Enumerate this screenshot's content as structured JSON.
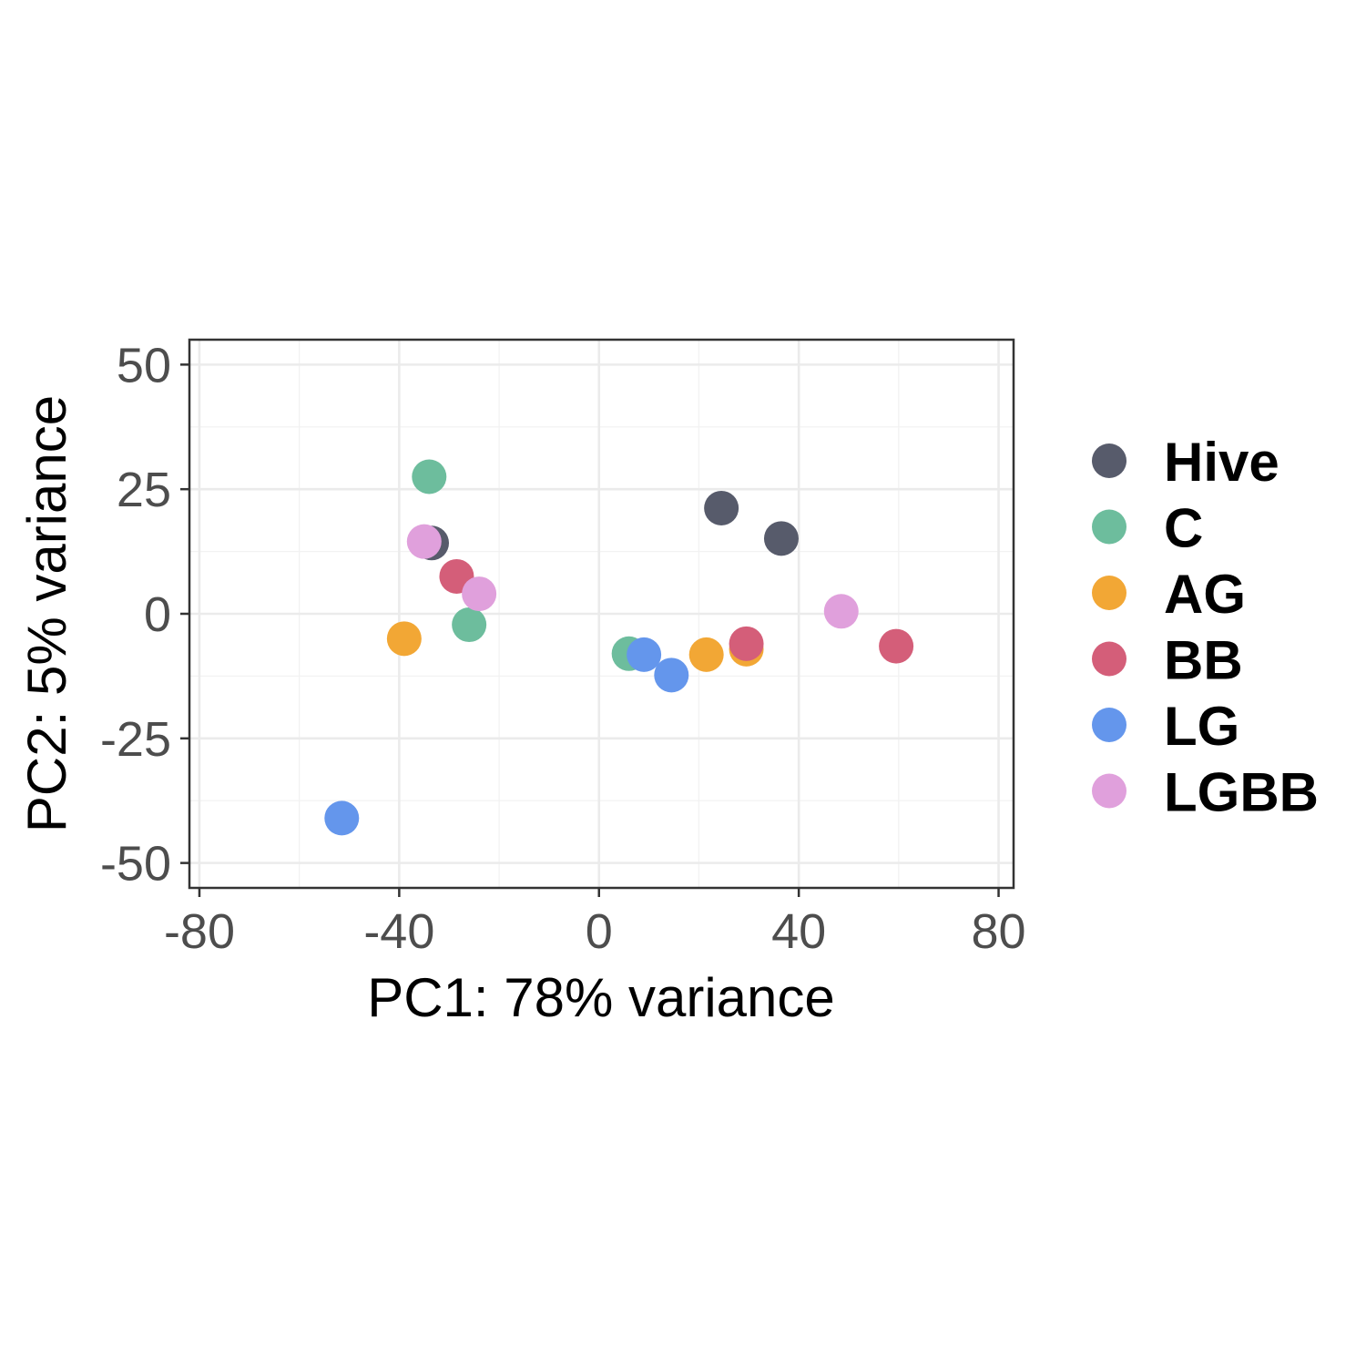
{
  "chart_data": {
    "type": "scatter",
    "xlabel": "PC1: 78% variance",
    "ylabel": "PC2: 5% variance",
    "xlim": [
      -82,
      83
    ],
    "ylim": [
      -55,
      55
    ],
    "x_ticks": [
      -80,
      -40,
      0,
      40,
      80
    ],
    "x_tick_labels": [
      "-80",
      "-40",
      "0",
      "40",
      "80"
    ],
    "y_ticks": [
      -50,
      -25,
      0,
      25,
      50
    ],
    "y_tick_labels": [
      "-50",
      "-25",
      "0",
      "25",
      "50"
    ],
    "grid": true,
    "legend_position": "right",
    "series": [
      {
        "name": "Hive",
        "color": "#575b6b",
        "points": [
          [
            -33.5,
            14.2
          ],
          [
            24.5,
            21.2
          ],
          [
            36.5,
            15.1
          ]
        ]
      },
      {
        "name": "C",
        "color": "#6dbd9d",
        "points": [
          [
            -34,
            27.5
          ],
          [
            -26,
            -2.2
          ],
          [
            6,
            -8
          ]
        ]
      },
      {
        "name": "AG",
        "color": "#f2a735",
        "points": [
          [
            -39,
            -5
          ],
          [
            21.5,
            -8.2
          ],
          [
            29.5,
            -7.1
          ]
        ]
      },
      {
        "name": "BB",
        "color": "#d45e79",
        "points": [
          [
            -28.5,
            7.5
          ],
          [
            29.5,
            -6
          ],
          [
            59.5,
            -6.5
          ]
        ]
      },
      {
        "name": "LG",
        "color": "#6496ec",
        "points": [
          [
            -51.5,
            -41
          ],
          [
            9,
            -8.2
          ],
          [
            14.5,
            -12.3
          ]
        ]
      },
      {
        "name": "LGBB",
        "color": "#e0a0dc",
        "points": [
          [
            -35,
            14.5
          ],
          [
            -24,
            4
          ],
          [
            48.5,
            0.5
          ]
        ]
      }
    ]
  }
}
